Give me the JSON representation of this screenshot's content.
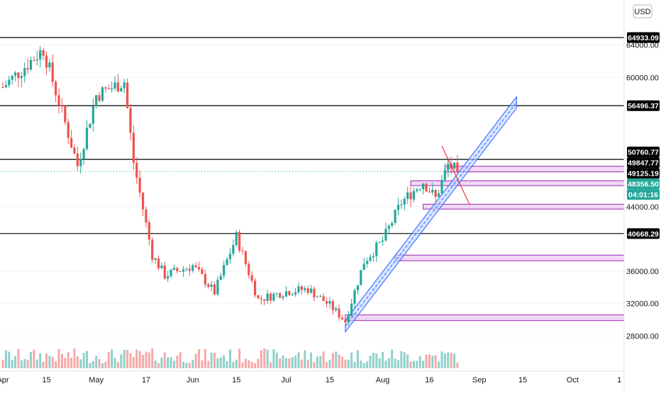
{
  "currency_label": "USD",
  "colors": {
    "up": "#26a69a",
    "down": "#ef5350",
    "vol_up": "#8fd0c9",
    "vol_down": "#f4a9a7",
    "level_line": "#000000",
    "zone_stroke": "#9c27b0",
    "zone_fill": "#e9c9ef",
    "channel_stroke": "#2962ff",
    "channel_fill": "#bcd2ff",
    "red_line": "#f23645",
    "current_price_bg": "#26a69a",
    "tag_bg": "#000000",
    "tag_text": "#ffffff",
    "grid": "#f0f3fa",
    "axis_text": "#131722"
  },
  "chart_data": {
    "type": "candlestick",
    "asset_unit": "USD",
    "ylim": [
      24000,
      68000
    ],
    "x_axis_ticks": [
      "Apr",
      "15",
      "May",
      "17",
      "Jun",
      "15",
      "Jul",
      "15",
      "Aug",
      "16",
      "Sep",
      "15",
      "Oct",
      "1"
    ],
    "y_axis_ticks": [
      28000,
      32000,
      36000,
      44000,
      60000,
      64000
    ],
    "horizontal_levels": [
      64933.09,
      56496.37,
      49847.77,
      40668.29
    ],
    "price_labels": [
      {
        "text": "64933.09",
        "style": "dark"
      },
      {
        "text": "56496.37",
        "style": "dark"
      },
      {
        "text": "50760.77",
        "style": "dark"
      },
      {
        "text": "49847.77",
        "style": "dark"
      },
      {
        "text": "49125.19",
        "style": "dark"
      },
      {
        "text": "48356.50",
        "style": "current"
      },
      {
        "text": "04:01:16",
        "style": "current"
      },
      {
        "text": "40668.29",
        "style": "dark"
      }
    ],
    "current_price": 48356.5,
    "countdown": "04:01:16",
    "start_date": "2021-04-01",
    "end_date": "2021-08-25",
    "monthly_anchors": [
      {
        "date": "2021-04-01",
        "close": 58800
      },
      {
        "date": "2021-04-14",
        "close": 63500
      },
      {
        "date": "2021-04-25",
        "close": 49100
      },
      {
        "date": "2021-05-01",
        "close": 57800
      },
      {
        "date": "2021-05-10",
        "close": 59500
      },
      {
        "date": "2021-05-13",
        "close": 49500
      },
      {
        "date": "2021-05-19",
        "close": 38000
      },
      {
        "date": "2021-05-23",
        "close": 35500
      },
      {
        "date": "2021-06-01",
        "close": 36700
      },
      {
        "date": "2021-06-08",
        "close": 33400
      },
      {
        "date": "2021-06-15",
        "close": 40300
      },
      {
        "date": "2021-06-22",
        "close": 32500
      },
      {
        "date": "2021-07-01",
        "close": 33500
      },
      {
        "date": "2021-07-08",
        "close": 33800
      },
      {
        "date": "2021-07-15",
        "close": 31800
      },
      {
        "date": "2021-07-20",
        "close": 29800
      },
      {
        "date": "2021-07-26",
        "close": 37200
      },
      {
        "date": "2021-08-01",
        "close": 39800
      },
      {
        "date": "2021-08-07",
        "close": 44500
      },
      {
        "date": "2021-08-14",
        "close": 47100
      },
      {
        "date": "2021-08-18",
        "close": 45000
      },
      {
        "date": "2021-08-22",
        "close": 49200
      },
      {
        "date": "2021-08-25",
        "close": 48356.5
      }
    ],
    "demand_zones": [
      {
        "low": 48300,
        "high": 49000,
        "start": "2021-08-21"
      },
      {
        "low": 46600,
        "high": 47200,
        "start": "2021-08-10"
      },
      {
        "low": 43700,
        "high": 44300,
        "start": "2021-08-14"
      },
      {
        "low": 37300,
        "high": 38000,
        "start": "2021-08-05"
      },
      {
        "low": 29900,
        "high": 30600,
        "start": "2021-07-20"
      }
    ],
    "rising_channel": {
      "start": {
        "date": "2021-07-20",
        "price": 28500
      },
      "end": {
        "date": "2021-09-13",
        "price": 56200
      },
      "width": 1400
    },
    "red_trendline": {
      "start": {
        "date": "2021-08-20",
        "price": 51500
      },
      "end": {
        "date": "2021-08-29",
        "price": 44200
      }
    },
    "volume": "bars at bottom, proportional to daily volume"
  }
}
